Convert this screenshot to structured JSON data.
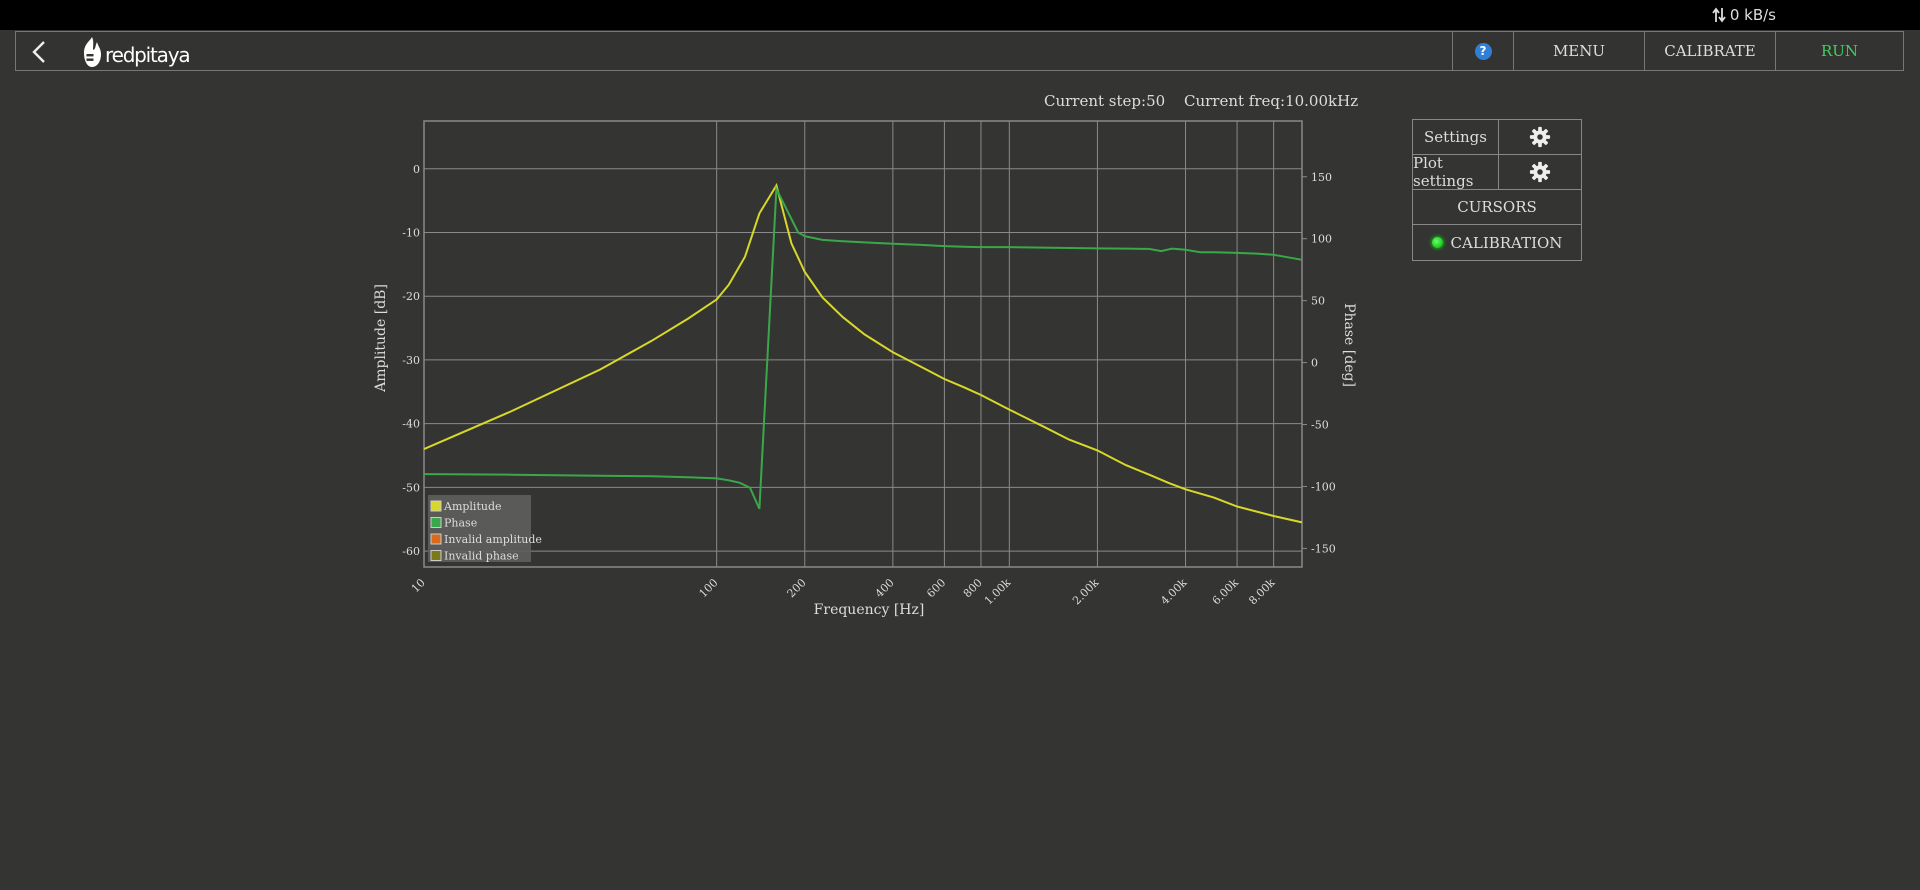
{
  "topbar": {
    "network_rate": "0 kB/s"
  },
  "navbar": {
    "help_label": "?",
    "menu_label": "MENU",
    "calibrate_label": "CALIBRATE",
    "run_label": "RUN",
    "logo_text": "redpitaya"
  },
  "status": {
    "current_step_label": "Current step:",
    "current_step_value": "50",
    "current_freq_label": "Current freq:",
    "current_freq_value": "10.00kHz"
  },
  "panel": {
    "settings_label": "Settings",
    "plotsettings_label": "Plot settings",
    "cursors_label": "CURSORS",
    "calibration_label": "CALIBRATION"
  },
  "icons": {
    "back": "chevron-left-icon",
    "logo": "redpitaya-flame-icon",
    "help": "help-icon",
    "gear": "gear-icon",
    "network": "updown-arrows-icon"
  },
  "colors": {
    "amplitude": "#d8d82a",
    "phase": "#3aa84a",
    "invalid_amplitude": "#d86a1e",
    "invalid_phase": "#7a7a1a",
    "run": "#3fcf5f"
  },
  "chart_data": {
    "type": "line",
    "xlabel": "Frequency [Hz]",
    "ylabel": "Amplitude [dB]",
    "y2label": "Phase [deg]",
    "xscale": "log",
    "xlim": [
      10,
      10000
    ],
    "ylim": [
      -62.5,
      7.5
    ],
    "y2lim": [
      -165,
      195
    ],
    "x_ticks": [
      10,
      100,
      200,
      400,
      600,
      800,
      1000,
      2000,
      4000,
      6000,
      8000
    ],
    "x_tick_labels": [
      "10",
      "100",
      "200",
      "400",
      "600",
      "800",
      "1.00k",
      "2.00k",
      "4.00k",
      "6.00k",
      "8.00k"
    ],
    "y_ticks": [
      0,
      -10,
      -20,
      -30,
      -40,
      -50,
      -60
    ],
    "y2_ticks": [
      150,
      100,
      50,
      0,
      -50,
      -100,
      -150
    ],
    "grid": true,
    "legend": {
      "position": "bottom-left",
      "entries": [
        "Amplitude",
        "Phase",
        "Invalid amplitude",
        "Invalid phase"
      ]
    },
    "series": [
      {
        "name": "Amplitude",
        "axis": "left",
        "x": [
          10,
          20,
          40,
          60,
          80,
          100,
          110,
          125,
          140,
          160,
          180,
          200,
          230,
          270,
          320,
          400,
          500,
          600,
          700,
          800,
          1000,
          1300,
          1600,
          2000,
          2500,
          3000,
          3500,
          4000,
          5000,
          6000,
          8000,
          10000
        ],
        "y": [
          -44,
          -38,
          -31.5,
          -27,
          -23.5,
          -20.5,
          -18.2,
          -13.8,
          -7,
          -2.6,
          -11.7,
          -16.2,
          -20.2,
          -23.3,
          -26,
          -28.8,
          -31.1,
          -33,
          -34.3,
          -35.5,
          -37.8,
          -40.4,
          -42.5,
          -44.2,
          -46.5,
          -48,
          -49.3,
          -50.3,
          -51.6,
          -53,
          -54.5,
          -55.5
        ]
      },
      {
        "name": "Phase",
        "axis": "right",
        "x": [
          10,
          20,
          40,
          60,
          80,
          100,
          110,
          120,
          130,
          140,
          160,
          190,
          200,
          230,
          270,
          320,
          400,
          500,
          600,
          700,
          800,
          1000,
          1300,
          1600,
          2000,
          2500,
          3000,
          3300,
          3600,
          4000,
          4500,
          5000,
          6000,
          7000,
          8000,
          10000
        ],
        "y": [
          -90,
          -90.5,
          -91.3,
          -91.8,
          -92.5,
          -93.5,
          -95,
          -97,
          -101,
          -118,
          140,
          105,
          102,
          99,
          98,
          97,
          96,
          95,
          94,
          93.5,
          93.2,
          93.2,
          92.8,
          92.5,
          92.2,
          92,
          91.8,
          90,
          92,
          91,
          89,
          89,
          88.5,
          88,
          87,
          83
        ]
      }
    ]
  }
}
